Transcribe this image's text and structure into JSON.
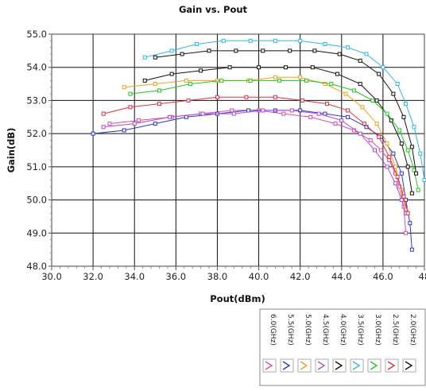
{
  "chart_data": {
    "type": "line",
    "title": "Gain vs. Pout",
    "xlabel": "Pout(dBm)",
    "ylabel": "Gain(dB)",
    "xlim": [
      30,
      48
    ],
    "ylim": [
      48,
      55
    ],
    "xticks": [
      "30.0",
      "32.0",
      "34.0",
      "36.0",
      "38.0",
      "40.0",
      "42.0",
      "44.0",
      "46.0",
      "48"
    ],
    "yticks": [
      "48.0",
      "49.0",
      "50.0",
      "51.0",
      "52.0",
      "53.0",
      "54.0",
      "55.0"
    ],
    "grid": true,
    "legend_position": "bottom-right",
    "series": [
      {
        "name": "6.0(GHz)",
        "color": "#e04aa8",
        "x": [
          32.8,
          34.2,
          35.8,
          37.2,
          38.7,
          40.0,
          41.2,
          42.5,
          43.7,
          44.6,
          45.4,
          45.9,
          46.3,
          46.6,
          46.8,
          47.0,
          47.1
        ],
        "y": [
          52.3,
          52.4,
          52.5,
          52.6,
          52.7,
          52.7,
          52.6,
          52.5,
          52.3,
          52.1,
          51.8,
          51.5,
          51.2,
          50.8,
          50.4,
          49.8,
          49.0
        ]
      },
      {
        "name": "5.5(GHz)",
        "color": "#2a37c8",
        "x": [
          32.0,
          33.5,
          35.0,
          36.5,
          38.0,
          39.5,
          40.8,
          42.0,
          43.2,
          44.3,
          45.2,
          45.9,
          46.5,
          46.9,
          47.1,
          47.3,
          47.4
        ],
        "y": [
          52.0,
          52.1,
          52.3,
          52.5,
          52.6,
          52.7,
          52.7,
          52.7,
          52.6,
          52.5,
          52.2,
          51.9,
          51.4,
          50.8,
          50.0,
          49.3,
          48.5
        ]
      },
      {
        "name": "5.0(GHz)",
        "color": "#f0a020",
        "x": [
          33.5,
          35.0,
          36.5,
          38.0,
          39.5,
          40.8,
          42.0,
          43.2,
          44.2,
          45.0,
          45.7,
          46.2,
          46.6,
          46.9,
          47.1
        ],
        "y": [
          53.4,
          53.5,
          53.6,
          53.6,
          53.6,
          53.7,
          53.7,
          53.5,
          53.2,
          52.8,
          52.3,
          51.7,
          51.0,
          50.3,
          49.7
        ]
      },
      {
        "name": "4.5(GHz)",
        "color": "#b048d8",
        "x": [
          32.5,
          34.0,
          35.7,
          37.3,
          38.8,
          40.2,
          41.6,
          42.9,
          44.0,
          44.9,
          45.6,
          46.2,
          46.6,
          46.9,
          47.1
        ],
        "y": [
          52.2,
          52.3,
          52.5,
          52.6,
          52.6,
          52.7,
          52.7,
          52.6,
          52.4,
          52.0,
          51.5,
          51.0,
          50.5,
          50.0,
          49.6
        ]
      },
      {
        "name": "4.0(GHz)",
        "color": "#111111",
        "x": [
          34.5,
          35.8,
          37.2,
          38.6,
          40.0,
          41.3,
          42.6,
          43.8,
          44.9,
          45.7,
          46.4,
          46.9,
          47.2,
          47.4
        ],
        "y": [
          53.6,
          53.8,
          53.9,
          54.0,
          54.0,
          54.0,
          54.0,
          53.8,
          53.5,
          53.0,
          52.4,
          51.7,
          51.0,
          50.2
        ]
      },
      {
        "name": "3.5(GHz)",
        "color": "#2ab8e8",
        "x": [
          34.5,
          35.8,
          37.0,
          38.3,
          39.6,
          40.8,
          42.0,
          43.2,
          44.3,
          45.2,
          46.0,
          46.7,
          47.1,
          47.5,
          47.8,
          48.0
        ],
        "y": [
          54.3,
          54.5,
          54.7,
          54.8,
          54.8,
          54.8,
          54.8,
          54.7,
          54.6,
          54.4,
          54.0,
          53.5,
          52.9,
          52.2,
          51.4,
          50.6
        ]
      },
      {
        "name": "3.0(GHz)",
        "color": "#20c820",
        "x": [
          33.8,
          35.2,
          36.7,
          38.2,
          39.6,
          41.0,
          42.3,
          43.5,
          44.6,
          45.5,
          46.2,
          46.8,
          47.2,
          47.5,
          47.7
        ],
        "y": [
          53.2,
          53.3,
          53.5,
          53.6,
          53.6,
          53.6,
          53.6,
          53.5,
          53.3,
          53.0,
          52.6,
          52.1,
          51.5,
          50.9,
          50.3
        ]
      },
      {
        "name": "2.5(GHz)",
        "color": "#e03040",
        "x": [
          32.5,
          33.8,
          35.2,
          36.6,
          38.0,
          39.4,
          40.8,
          42.1,
          43.3,
          44.3,
          45.1,
          45.8,
          46.3,
          46.7,
          47.0,
          47.2
        ],
        "y": [
          52.6,
          52.8,
          52.9,
          53.0,
          53.1,
          53.1,
          53.1,
          53.0,
          52.9,
          52.7,
          52.3,
          51.9,
          51.3,
          50.7,
          50.1,
          49.6
        ]
      },
      {
        "name": "2.0(GHz)",
        "color": "#111111",
        "x": [
          35.0,
          36.3,
          37.6,
          38.9,
          40.2,
          41.5,
          42.7,
          43.9,
          44.9,
          45.8,
          46.5,
          47.0,
          47.4,
          47.6
        ],
        "y": [
          54.3,
          54.4,
          54.5,
          54.5,
          54.5,
          54.5,
          54.5,
          54.4,
          54.2,
          53.8,
          53.2,
          52.5,
          51.6,
          50.8
        ]
      }
    ]
  }
}
